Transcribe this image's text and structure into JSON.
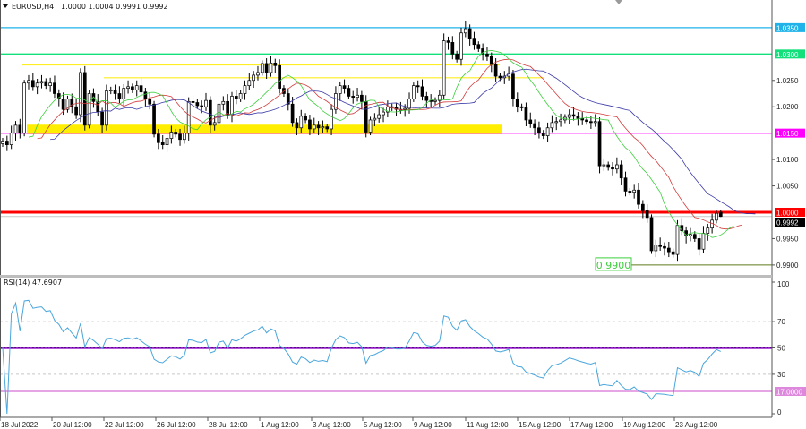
{
  "header": {
    "symbol_timeframe": "EURUSD,H4",
    "ohlc_text": "1.0000 1.0004 0.9991 0.9992"
  },
  "chart_data": [
    {
      "type": "candlestick",
      "title": "EURUSD,H4",
      "ylim": [
        0.9885,
        1.0375
      ],
      "price_ticks": [
        "1.0250",
        "1.0200",
        "1.0100",
        "1.0050",
        "0.9950",
        "0.9900"
      ],
      "time_labels": [
        "18 Jul 2022",
        "20 Jul 12:00",
        "22 Jul 12:00",
        "26 Jul 12:00",
        "28 Jul 12:00",
        "1 Aug 12:00",
        "3 Aug 12:00",
        "5 Aug 12:00",
        "9 Aug 12:00",
        "11 Aug 12:00",
        "15 Aug 12:00",
        "17 Aug 12:00",
        "19 Aug 12:00",
        "23 Aug 12:00"
      ],
      "last_bar": {
        "open": 1.0,
        "high": 1.0004,
        "low": 0.9991,
        "close": 0.9992
      },
      "close": [
        1.0135,
        1.0128,
        1.015,
        1.0165,
        1.015,
        1.0245,
        1.025,
        1.0238,
        1.0245,
        1.0248,
        1.024,
        1.0245,
        1.0225,
        1.0215,
        1.0195,
        1.0215,
        1.02,
        1.0185,
        1.0265,
        1.0165,
        1.0225,
        1.021,
        1.019,
        1.0165,
        1.023,
        1.0232,
        1.0225,
        1.0215,
        1.0235,
        1.0238,
        1.0232,
        1.024,
        1.0228,
        1.0215,
        1.0205,
        1.0148,
        1.0132,
        1.0128,
        1.014,
        1.0152,
        1.0148,
        1.0138,
        1.015,
        1.021,
        1.0208,
        1.0202,
        1.02,
        1.0212,
        1.0165,
        1.017,
        1.0205,
        1.021,
        1.0185,
        1.022,
        1.0215,
        1.0225,
        1.024,
        1.025,
        1.026,
        1.0265,
        1.0282,
        1.0265,
        1.0283,
        1.0278,
        1.0235,
        1.0225,
        1.0205,
        1.017,
        1.016,
        1.0182,
        1.0175,
        1.0158,
        1.0165,
        1.016,
        1.0162,
        1.0158,
        1.0195,
        1.0225,
        1.024,
        1.0235,
        1.022,
        1.0218,
        1.0222,
        1.021,
        1.0152,
        1.0175,
        1.0178,
        1.0185,
        1.019,
        1.02,
        1.0198,
        1.0195,
        1.0195,
        1.0197,
        1.0215,
        1.024,
        1.0238,
        1.022,
        1.0212,
        1.021,
        1.0212,
        1.0222,
        1.0325,
        1.0322,
        1.03,
        1.029,
        1.034,
        1.0348,
        1.033,
        1.0318,
        1.031,
        1.03,
        1.0295,
        1.028,
        1.0258,
        1.0255,
        1.0258,
        1.0262,
        1.0215,
        1.02,
        1.0198,
        1.0175,
        1.0168,
        1.016,
        1.015,
        1.0145,
        1.016,
        1.017,
        1.0172,
        1.0175,
        1.018,
        1.0185,
        1.0182,
        1.0178,
        1.0175,
        1.0172,
        1.017,
        1.0172,
        1.0088,
        1.009,
        1.0085,
        1.0082,
        1.009,
        1.0065,
        1.004,
        1.0038,
        1.0042,
        1.0015,
        1.0003,
        0.999,
        0.9927,
        0.9938,
        0.9935,
        0.9932,
        0.9925,
        0.992,
        0.9975,
        0.9965,
        0.9955,
        0.9958,
        0.995,
        0.993,
        0.996,
        0.997,
        0.9985,
        0.9998,
        0.9992
      ],
      "indicators": {
        "alligator": {
          "jaw": {
            "period": 13,
            "shift": 8,
            "color": "#3a3aa8"
          },
          "teeth": {
            "period": 8,
            "shift": 5,
            "color": "#d23a3a"
          },
          "lips": {
            "period": 5,
            "shift": 3,
            "color": "#3ccf3c"
          }
        }
      },
      "levels": [
        {
          "price": 1.035,
          "label": "1.0350",
          "color": "#1fb3ea",
          "label_text_color": "#ffffff"
        },
        {
          "price": 1.03,
          "label": "1.0300",
          "color": "#12e07a",
          "label_text_color": "#ffffff"
        },
        {
          "price": 1.015,
          "label": "1.0150",
          "color": "#ff00ff",
          "label_text_color": "#ffffff"
        },
        {
          "price": 1.0,
          "label": "1.0000",
          "color": "#ff0000",
          "label_text_color": "#ffffff"
        },
        {
          "price": 0.9992,
          "label": "0.9992",
          "color": "#c8c8c8",
          "label_text_color": "#ffffff",
          "label_bg": "#000000"
        }
      ],
      "support_line": {
        "price": 0.99,
        "label": "0.9900",
        "color": "#5f7a1a",
        "label_color": "#3ccf3c"
      },
      "resistance_lines": [
        {
          "price": 1.028,
          "color": "#ffee22"
        },
        {
          "price": 1.0255,
          "color": "#ffee22"
        }
      ],
      "zone": {
        "from": 1.0148,
        "to": 1.0166,
        "color": "#ffee00"
      }
    },
    {
      "type": "line",
      "title": "RSI(14) 47.6907",
      "ylim": [
        0,
        100
      ],
      "ticks": [
        "100",
        "70",
        "50",
        "30",
        "0"
      ],
      "period": 14,
      "line_color": "#4aa6dc",
      "levels": [
        {
          "value": 70,
          "color": "#c8c8c8",
          "style": "dashed"
        },
        {
          "value": 30,
          "color": "#c8c8c8",
          "style": "dashed"
        },
        {
          "value": 50,
          "color": "#9a1ed0",
          "style": "solid-dotted"
        },
        {
          "value": 17,
          "label": "17.0000",
          "color": "#dd88dd"
        }
      ]
    }
  ]
}
